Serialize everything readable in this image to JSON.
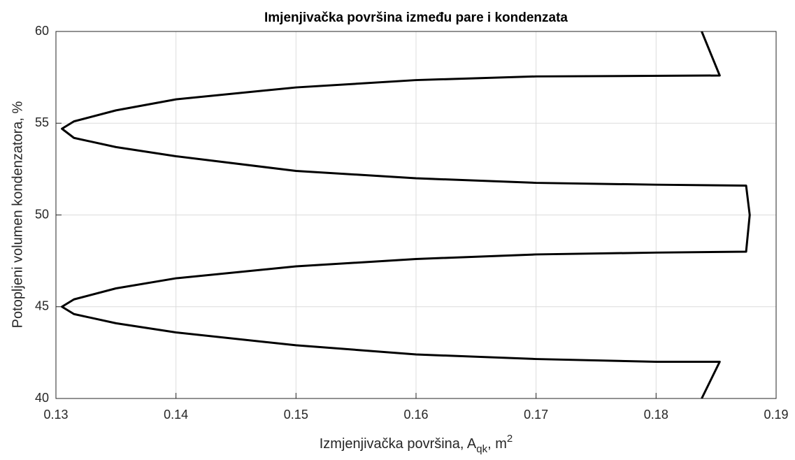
{
  "chart_data": {
    "type": "line",
    "title": "Imjenjivačka površina između pare i kondenzata",
    "xlabel_parts": [
      "Izmjenjivačka površina, A",
      "qk",
      ", m",
      "2"
    ],
    "ylabel": "Potopljeni volumen kondenzatora, %",
    "x": [
      0.1838,
      0.1853,
      0.17,
      0.16,
      0.15,
      0.14,
      0.135,
      0.1315,
      0.1305,
      0.1315,
      0.135,
      0.14,
      0.15,
      0.16,
      0.17,
      0.18,
      0.1875,
      0.1878,
      0.1875,
      0.18,
      0.17,
      0.16,
      0.15,
      0.14,
      0.135,
      0.1315,
      0.1305,
      0.1315,
      0.135,
      0.14,
      0.15,
      0.16,
      0.17,
      0.18,
      0.1853,
      0.1838
    ],
    "series": [
      {
        "color": "#000000",
        "values": [
          60,
          57.6,
          57.55,
          57.35,
          56.95,
          56.3,
          55.7,
          55.1,
          54.7,
          54.2,
          53.7,
          53.2,
          52.4,
          52.0,
          51.75,
          51.65,
          51.6,
          50,
          48.0,
          47.95,
          47.85,
          47.6,
          47.2,
          46.55,
          46.0,
          45.4,
          45.0,
          44.6,
          44.1,
          43.6,
          42.9,
          42.4,
          42.15,
          42.0,
          42.0,
          40
        ]
      }
    ],
    "xlim": [
      0.13,
      0.19
    ],
    "xticks": [
      0.13,
      0.14,
      0.15,
      0.16,
      0.17,
      0.18,
      0.19
    ],
    "ylim": [
      40,
      60
    ],
    "yticks": [
      40,
      45,
      50,
      55,
      60
    ],
    "grid": true
  }
}
